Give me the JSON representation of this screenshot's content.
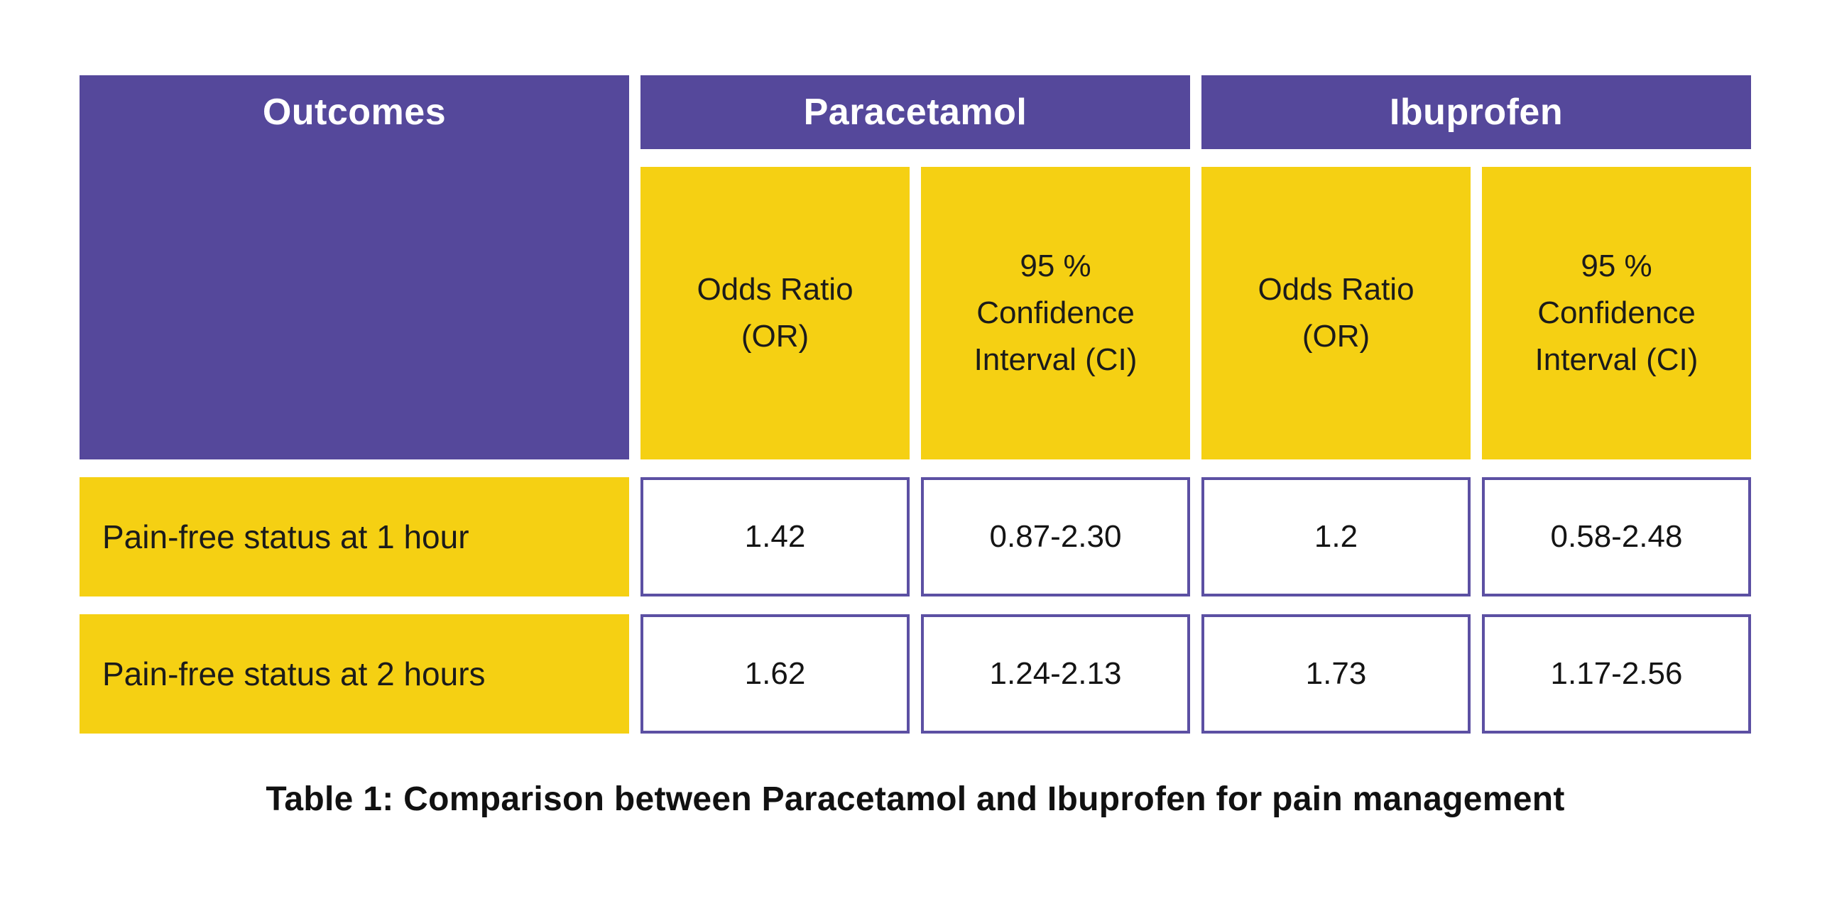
{
  "chart_data": {
    "type": "table",
    "title": "Table 1: Comparison between Paracetamol and Ibuprofen for pain management",
    "header": {
      "outcomes": "Outcomes",
      "groups": [
        {
          "label": "Paracetamol",
          "subheaders": [
            "Odds Ratio (OR)",
            "95 % Confidence Interval (CI)"
          ]
        },
        {
          "label": "Ibuprofen",
          "subheaders": [
            "Odds Ratio (OR)",
            "95 % Confidence Interval (CI)"
          ]
        }
      ]
    },
    "rows": [
      {
        "outcome": "Pain-free status at 1 hour",
        "paracetamol": {
          "odds_ratio": "1.42",
          "ci_95": "0.87-2.30"
        },
        "ibuprofen": {
          "odds_ratio": "1.2",
          "ci_95": "0.58-2.48"
        }
      },
      {
        "outcome": "Pain-free status at 2 hours",
        "paracetamol": {
          "odds_ratio": "1.62",
          "ci_95": "1.24-2.13"
        },
        "ibuprofen": {
          "odds_ratio": "1.73",
          "ci_95": "1.17-2.56"
        }
      }
    ],
    "layout": {
      "grid": "off",
      "legend": "none"
    },
    "colors": {
      "header_purple": "#55489B",
      "accent_yellow": "#F5D013",
      "cell_border_purple": "#5C50A3",
      "header_text": "#FFFFFF",
      "body_text": "#1B1B1B",
      "background": "#FFFFFF"
    }
  }
}
